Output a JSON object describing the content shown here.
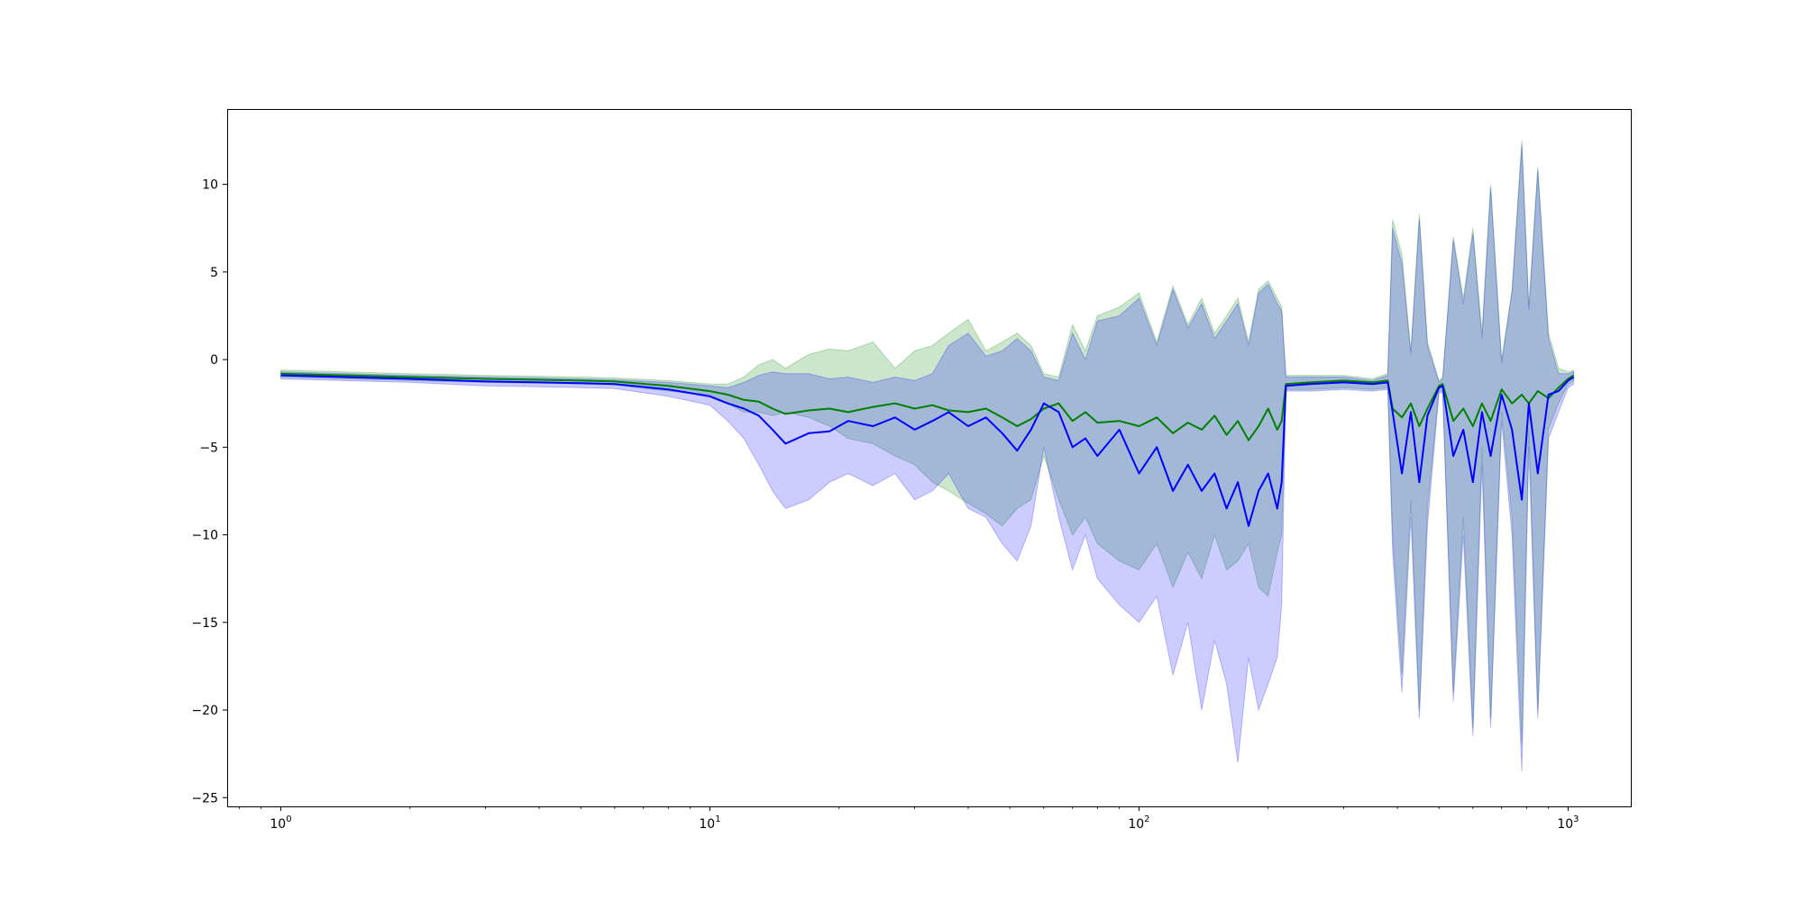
{
  "chart_data": {
    "type": "line",
    "title": "",
    "xlabel": "",
    "ylabel": "",
    "x_scale": "log",
    "xlim": [
      0.75,
      1400
    ],
    "ylim": [
      -25.5,
      14.3
    ],
    "grid": false,
    "legend": "none",
    "x_ticks": [
      {
        "value": 1,
        "mantissa": "10",
        "exponent": "0"
      },
      {
        "value": 10,
        "mantissa": "10",
        "exponent": "1"
      },
      {
        "value": 100,
        "mantissa": "10",
        "exponent": "2"
      },
      {
        "value": 1000,
        "mantissa": "10",
        "exponent": "3"
      }
    ],
    "y_ticks": [
      {
        "value": 10,
        "label": "10"
      },
      {
        "value": 5,
        "label": "5"
      },
      {
        "value": 0,
        "label": "0"
      },
      {
        "value": -5,
        "label": "−5"
      },
      {
        "value": -10,
        "label": "−10"
      },
      {
        "value": -15,
        "label": "−15"
      },
      {
        "value": -20,
        "label": "−20"
      },
      {
        "value": -25,
        "label": "−25"
      }
    ],
    "series": [
      {
        "color": "#008000",
        "band_color": "#008000",
        "x": [
          1,
          2,
          3,
          4,
          5,
          6,
          8,
          10,
          11,
          12,
          13,
          14,
          15,
          17,
          19,
          21,
          24,
          27,
          30,
          33,
          36,
          40,
          44,
          48,
          52,
          56,
          60,
          65,
          70,
          75,
          80,
          90,
          100,
          110,
          120,
          130,
          140,
          150,
          160,
          170,
          180,
          190,
          200,
          210,
          215,
          220,
          250,
          300,
          350,
          380,
          390,
          410,
          430,
          450,
          470,
          500,
          510,
          540,
          570,
          600,
          630,
          660,
          700,
          740,
          780,
          810,
          850,
          900,
          950,
          1000,
          1030
        ],
        "y": [
          -0.8,
          -1.0,
          -1.1,
          -1.15,
          -1.2,
          -1.25,
          -1.5,
          -1.8,
          -2.0,
          -2.3,
          -2.4,
          -2.8,
          -3.1,
          -2.9,
          -2.8,
          -3.0,
          -2.7,
          -2.5,
          -2.8,
          -2.6,
          -2.9,
          -3.0,
          -2.8,
          -3.3,
          -3.8,
          -3.4,
          -2.8,
          -2.5,
          -3.5,
          -3.0,
          -3.6,
          -3.5,
          -3.8,
          -3.3,
          -4.2,
          -3.6,
          -4.0,
          -3.2,
          -4.3,
          -3.5,
          -4.6,
          -3.8,
          -2.8,
          -4.0,
          -3.5,
          -1.4,
          -1.3,
          -1.2,
          -1.3,
          -1.2,
          -2.8,
          -3.3,
          -2.5,
          -3.8,
          -2.8,
          -1.5,
          -1.4,
          -3.5,
          -2.8,
          -3.8,
          -2.5,
          -3.5,
          -1.7,
          -2.5,
          -2.0,
          -2.5,
          -1.8,
          -2.2,
          -1.6,
          -1.1,
          -0.9
        ],
        "upper": [
          -0.6,
          -0.8,
          -0.9,
          -0.95,
          -1.0,
          -1.05,
          -1.2,
          -1.4,
          -1.4,
          -1.0,
          -0.3,
          0.0,
          -0.5,
          0.3,
          0.6,
          0.5,
          1.0,
          -0.5,
          0.5,
          0.8,
          1.5,
          2.3,
          0.5,
          1.0,
          1.5,
          0.8,
          -0.8,
          -1.0,
          2.0,
          0.5,
          2.5,
          3.0,
          3.8,
          1.0,
          4.2,
          2.0,
          3.5,
          1.5,
          2.5,
          3.5,
          1.0,
          4.0,
          4.5,
          3.5,
          3.0,
          -0.9,
          -0.9,
          -0.9,
          -1.1,
          -0.8,
          8.0,
          6.0,
          0.5,
          8.3,
          1.0,
          -1.2,
          -1.0,
          7.0,
          3.5,
          7.5,
          1.5,
          10.0,
          0.0,
          4.0,
          12.5,
          3.0,
          11.0,
          1.5,
          -0.5,
          -0.7,
          -0.6
        ],
        "lower": [
          -1.0,
          -1.2,
          -1.3,
          -1.35,
          -1.4,
          -1.45,
          -1.8,
          -2.0,
          -2.5,
          -3.0,
          -3.0,
          -3.2,
          -3.0,
          -3.3,
          -3.8,
          -4.5,
          -4.8,
          -5.5,
          -6.0,
          -7.0,
          -7.5,
          -8.2,
          -8.8,
          -9.5,
          -8.5,
          -8.0,
          -5.5,
          -8.0,
          -10.0,
          -9.0,
          -10.5,
          -11.5,
          -12.0,
          -10.5,
          -13.0,
          -11.0,
          -12.5,
          -10.0,
          -12.0,
          -11.5,
          -10.5,
          -13.0,
          -13.5,
          -11.0,
          -10.0,
          -1.7,
          -1.7,
          -1.6,
          -1.7,
          -1.6,
          -10.0,
          -18.0,
          -8.0,
          -20.0,
          -8.5,
          -1.8,
          -1.8,
          -19.0,
          -9.0,
          -21.0,
          -5.0,
          -20.5,
          -3.0,
          -9.0,
          -22.0,
          -4.0,
          -20.0,
          -4.0,
          -2.5,
          -1.4,
          -1.2
        ]
      },
      {
        "color": "#0000ff",
        "band_color": "#0000ff",
        "x": [
          1,
          2,
          3,
          4,
          5,
          6,
          8,
          10,
          11,
          12,
          13,
          14,
          15,
          17,
          19,
          21,
          24,
          27,
          30,
          33,
          36,
          40,
          44,
          48,
          52,
          56,
          60,
          65,
          70,
          75,
          80,
          90,
          100,
          110,
          120,
          130,
          140,
          150,
          160,
          170,
          180,
          190,
          200,
          210,
          215,
          220,
          250,
          300,
          350,
          380,
          390,
          410,
          430,
          450,
          470,
          500,
          510,
          540,
          570,
          600,
          630,
          660,
          700,
          740,
          780,
          810,
          850,
          900,
          950,
          1000,
          1030
        ],
        "y": [
          -0.9,
          -1.1,
          -1.25,
          -1.3,
          -1.35,
          -1.4,
          -1.7,
          -2.1,
          -2.5,
          -2.8,
          -3.2,
          -4.0,
          -4.8,
          -4.2,
          -4.1,
          -3.5,
          -3.8,
          -3.3,
          -4.0,
          -3.5,
          -3.0,
          -3.8,
          -3.3,
          -4.2,
          -5.2,
          -4.0,
          -2.5,
          -3.0,
          -5.0,
          -4.5,
          -5.5,
          -4.0,
          -6.5,
          -5.0,
          -7.5,
          -6.0,
          -7.5,
          -6.5,
          -8.5,
          -7.0,
          -9.5,
          -7.5,
          -6.5,
          -8.5,
          -7.0,
          -1.5,
          -1.4,
          -1.3,
          -1.4,
          -1.3,
          -3.0,
          -6.5,
          -3.0,
          -7.0,
          -3.2,
          -1.6,
          -1.5,
          -5.5,
          -4.0,
          -7.0,
          -3.0,
          -5.5,
          -2.0,
          -4.0,
          -8.0,
          -2.5,
          -6.5,
          -2.0,
          -1.8,
          -1.2,
          -1.0
        ],
        "upper": [
          -0.7,
          -0.9,
          -1.0,
          -1.05,
          -1.1,
          -1.15,
          -1.3,
          -1.5,
          -1.6,
          -1.3,
          -0.9,
          -0.7,
          -0.8,
          -0.8,
          -1.1,
          -1.0,
          -1.3,
          -1.0,
          -1.2,
          -0.8,
          0.8,
          1.5,
          0.2,
          0.5,
          1.2,
          0.5,
          -1.0,
          -1.2,
          1.5,
          0.0,
          2.2,
          2.5,
          3.5,
          0.8,
          4.0,
          1.8,
          3.2,
          1.2,
          2.2,
          3.2,
          0.8,
          3.8,
          4.3,
          3.2,
          2.8,
          -1.0,
          -1.0,
          -1.0,
          -1.2,
          -0.9,
          7.5,
          5.5,
          0.3,
          8.0,
          0.8,
          -1.3,
          -1.1,
          6.8,
          3.2,
          7.2,
          1.2,
          9.8,
          -0.2,
          3.8,
          12.2,
          2.8,
          10.8,
          1.2,
          -0.8,
          -0.8,
          -0.7
        ],
        "lower": [
          -1.1,
          -1.3,
          -1.5,
          -1.55,
          -1.6,
          -1.65,
          -2.1,
          -2.6,
          -3.5,
          -4.5,
          -6.0,
          -7.5,
          -8.5,
          -8.0,
          -7.0,
          -6.5,
          -7.2,
          -6.5,
          -8.0,
          -7.5,
          -6.5,
          -8.5,
          -9.0,
          -10.5,
          -11.5,
          -9.5,
          -5.0,
          -9.0,
          -12.0,
          -10.0,
          -12.5,
          -14.0,
          -15.0,
          -13.5,
          -18.0,
          -15.0,
          -20.0,
          -16.0,
          -18.5,
          -23.0,
          -17.0,
          -20.0,
          -18.5,
          -17.0,
          -14.0,
          -1.8,
          -1.8,
          -1.7,
          -1.8,
          -1.7,
          -11.0,
          -19.0,
          -9.0,
          -20.5,
          -9.5,
          -1.9,
          -1.9,
          -19.5,
          -10.0,
          -21.5,
          -6.0,
          -21.0,
          -3.5,
          -10.0,
          -23.5,
          -5.0,
          -20.5,
          -4.5,
          -3.0,
          -1.6,
          -1.4
        ]
      }
    ]
  }
}
